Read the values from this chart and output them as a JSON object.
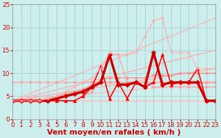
{
  "title": "",
  "xlabel": "Vent moyen/en rafales ( km/h )",
  "ylabel": "",
  "background_color": "#ceeeed",
  "grid_color": "#a8d4d4",
  "xlim": [
    0,
    23
  ],
  "ylim": [
    0,
    25
  ],
  "xticks": [
    0,
    1,
    2,
    3,
    4,
    5,
    6,
    7,
    8,
    9,
    10,
    11,
    12,
    13,
    14,
    15,
    16,
    17,
    18,
    19,
    20,
    21,
    22,
    23
  ],
  "yticks": [
    0,
    5,
    10,
    15,
    20,
    25
  ],
  "lines": [
    {
      "x": [
        0,
        23
      ],
      "y": [
        4,
        22
      ],
      "color": "#ffaaaa",
      "lw": 1.0,
      "marker": null,
      "markersize": 0,
      "alpha": 0.8
    },
    {
      "x": [
        0,
        23
      ],
      "y": [
        4,
        15
      ],
      "color": "#ffaaaa",
      "lw": 1.0,
      "marker": null,
      "markersize": 0,
      "alpha": 0.9
    },
    {
      "x": [
        0,
        23
      ],
      "y": [
        4,
        11
      ],
      "color": "#ffaaaa",
      "lw": 1.0,
      "marker": null,
      "markersize": 0,
      "alpha": 0.9
    },
    {
      "x": [
        0,
        23
      ],
      "y": [
        4,
        8
      ],
      "color": "#ffbbbb",
      "lw": 1.0,
      "marker": null,
      "markersize": 0,
      "alpha": 0.85
    },
    {
      "x": [
        0,
        1,
        2,
        3,
        4,
        5,
        6,
        7,
        8,
        9,
        10,
        11,
        12,
        13,
        14,
        15,
        16,
        17,
        18,
        19,
        20,
        21,
        22,
        23
      ],
      "y": [
        4,
        4,
        4,
        4,
        4,
        4,
        4,
        4,
        4,
        4,
        4,
        4,
        4,
        4,
        4,
        4,
        4,
        4,
        4,
        4,
        4,
        4,
        4,
        4
      ],
      "color": "#ffbbbb",
      "lw": 1.0,
      "marker": "o",
      "markersize": 2.0,
      "alpha": 0.9
    },
    {
      "x": [
        0,
        1,
        2,
        3,
        4,
        5,
        6,
        7,
        8,
        9,
        10,
        11,
        12,
        13,
        14,
        15,
        16,
        17,
        18,
        19,
        20,
        21,
        22,
        23
      ],
      "y": [
        4,
        4,
        4,
        4,
        4,
        4.5,
        5,
        5.5,
        6,
        7,
        8,
        8,
        8,
        8,
        8,
        8,
        8,
        8,
        8,
        8,
        8,
        8,
        8,
        8
      ],
      "color": "#ff9999",
      "lw": 1.0,
      "marker": "o",
      "markersize": 2.5,
      "alpha": 0.85
    },
    {
      "x": [
        0,
        1,
        2,
        3,
        4,
        5,
        6,
        7,
        8,
        9,
        10,
        11,
        12,
        13,
        14,
        15,
        16,
        17,
        18,
        19,
        20,
        21,
        22,
        23
      ],
      "y": [
        4,
        4,
        4,
        4,
        4.5,
        5,
        5.5,
        6,
        6.5,
        7.5,
        8.5,
        9,
        9,
        9,
        9,
        9,
        9.5,
        9.5,
        9.5,
        10,
        10,
        10,
        10,
        10
      ],
      "color": "#ff8888",
      "lw": 1.0,
      "marker": "o",
      "markersize": 2.5,
      "alpha": 0.85
    },
    {
      "x": [
        0,
        1,
        2,
        3,
        4,
        5,
        6,
        7,
        8,
        9,
        10,
        11,
        12,
        13,
        14,
        15,
        16,
        17,
        18,
        19,
        20,
        21,
        22,
        23
      ],
      "y": [
        8,
        8,
        8,
        8,
        8,
        8,
        8,
        8,
        8,
        8,
        8,
        8,
        8,
        8,
        8,
        8,
        8,
        8,
        8,
        8,
        8,
        8,
        8,
        8
      ],
      "color": "#ff9999",
      "lw": 1.0,
      "marker": "o",
      "markersize": 2.5,
      "alpha": 0.75
    },
    {
      "x": [
        0,
        1,
        2,
        3,
        4,
        5,
        6,
        7,
        8,
        9,
        10,
        11,
        12,
        13,
        14,
        15,
        16,
        17,
        18,
        19,
        20,
        21,
        22,
        23
      ],
      "y": [
        4,
        4,
        4,
        4,
        4,
        4,
        4,
        4,
        5,
        6,
        8,
        14,
        14,
        8,
        8,
        8,
        7,
        7,
        7,
        7,
        7,
        7,
        7,
        7
      ],
      "color": "#ff9999",
      "lw": 1.0,
      "marker": "o",
      "markersize": 2.5,
      "alpha": 0.8
    },
    {
      "x": [
        0,
        1,
        2,
        3,
        4,
        5,
        6,
        7,
        8,
        9,
        10,
        11,
        12,
        13,
        14,
        15,
        16,
        17,
        18,
        19,
        20,
        21,
        22,
        23
      ],
      "y": [
        4,
        4,
        4,
        4,
        4,
        4,
        4,
        4,
        5,
        7,
        11.5,
        4.5,
        8,
        4.5,
        8,
        7,
        8,
        14,
        7.5,
        8,
        8,
        11,
        4,
        4
      ],
      "color": "#ff0000",
      "lw": 1.2,
      "marker": "^",
      "markersize": 3.5,
      "alpha": 1.0
    },
    {
      "x": [
        0,
        1,
        2,
        3,
        4,
        5,
        6,
        7,
        8,
        9,
        10,
        11,
        12,
        13,
        14,
        15,
        16,
        17,
        18,
        19,
        20,
        21,
        22,
        23
      ],
      "y": [
        4,
        4,
        4,
        4,
        4,
        4.5,
        5,
        5.5,
        6,
        7,
        8,
        14,
        7.5,
        7.5,
        8,
        7,
        14.5,
        7.5,
        8,
        8,
        8,
        8,
        4,
        4
      ],
      "color": "#cc0000",
      "lw": 2.5,
      "marker": "D",
      "markersize": 3.5,
      "alpha": 1.0
    },
    {
      "x": [
        0,
        1,
        2,
        3,
        4,
        5,
        6,
        7,
        8,
        9,
        10,
        11,
        12,
        13,
        14,
        15,
        16,
        17,
        18,
        19,
        20,
        21,
        22,
        23
      ],
      "y": [
        4,
        4,
        4,
        4,
        4.5,
        5,
        6,
        7,
        8,
        9,
        11,
        14.5,
        14,
        14,
        14.5,
        18,
        21.5,
        22,
        14.5,
        14.5,
        14.5,
        11,
        11,
        11
      ],
      "color": "#ffaaaa",
      "lw": 1.0,
      "marker": "o",
      "markersize": 2.5,
      "alpha": 0.75
    }
  ],
  "xlabel_color": "#cc0000",
  "xlabel_fontsize": 8,
  "tick_color": "#cc0000",
  "tick_fontsize": 6.5
}
